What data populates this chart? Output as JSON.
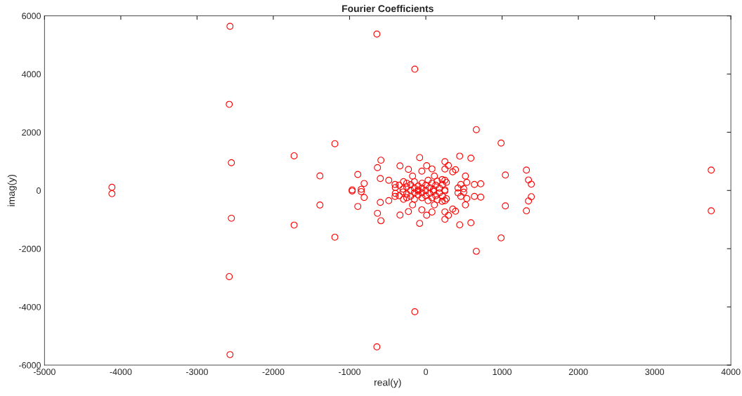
{
  "chart_data": {
    "type": "scatter",
    "title": "Fourier Coefficients",
    "xlabel": "real(y)",
    "ylabel": "imag(y)",
    "xlim": [
      -5000,
      4000
    ],
    "ylim": [
      -6000,
      6000
    ],
    "xticks": [
      -5000,
      -4000,
      -3000,
      -2000,
      -1000,
      0,
      1000,
      2000,
      3000,
      4000
    ],
    "yticks": [
      -6000,
      -4000,
      -2000,
      0,
      2000,
      4000,
      6000
    ],
    "grid": false,
    "marker": "circle",
    "series": [
      {
        "color": "#ff0000",
        "x": [
          -4116,
          -4116,
          -2568,
          -2568,
          -2578,
          -2578,
          -2550,
          -2550,
          -642,
          -642,
          -145,
          -145,
          -1727,
          -1727,
          -1193,
          -1193,
          -1389,
          -1389,
          -966,
          -966,
          -892,
          -892,
          -847,
          -847,
          3742,
          3742,
          662,
          662,
          987,
          987,
          1043,
          1043,
          1319,
          1319,
          1346,
          1346,
          1383,
          1383,
          -81,
          -81,
          444,
          444,
          591,
          591,
          -589,
          -589,
          -634,
          -634,
          -339,
          -339,
          -597,
          -597,
          -809,
          -809,
          -486,
          -486,
          -228,
          -228,
          11,
          11,
          -53,
          -53,
          81,
          81,
          250,
          250,
          296,
          296,
          250,
          250,
          352,
          352,
          389,
          389,
          519,
          519,
          537,
          537,
          637,
          637,
          720,
          720,
          459,
          459,
          422,
          422,
          496,
          496,
          250,
          250,
          214,
          214,
          -404,
          -404,
          -293,
          -293,
          -174,
          -174,
          112,
          112,
          -400,
          -400,
          -350,
          -350,
          -300,
          -300,
          -250,
          -250,
          -250,
          -250,
          -200,
          -200,
          -200,
          -150,
          -150,
          -150,
          -150,
          -100,
          -100,
          -100,
          -100,
          -50,
          -50,
          -50,
          -50,
          0,
          0,
          0,
          30,
          30,
          50,
          50,
          80,
          80,
          100,
          100,
          130,
          130,
          150,
          150,
          180,
          180,
          220,
          220,
          250,
          250,
          270,
          270
        ],
        "values": [
          110,
          -110,
          5640,
          -5640,
          2959,
          -2959,
          954,
          -954,
          5374,
          -5374,
          4167,
          -4167,
          1190,
          -1190,
          1606,
          -1606,
          500,
          -500,
          20,
          -20,
          550,
          -550,
          40,
          -40,
          700,
          -700,
          2089,
          -2089,
          1630,
          -1630,
          530,
          -530,
          700,
          -700,
          360,
          -360,
          215,
          -215,
          1130,
          -1130,
          1180,
          -1180,
          1110,
          -1110,
          1040,
          -1040,
          785,
          -785,
          845,
          -845,
          410,
          -410,
          240,
          -240,
          350,
          -350,
          725,
          -725,
          850,
          -850,
          665,
          -665,
          740,
          -740,
          990,
          -990,
          857,
          -857,
          737,
          -737,
          640,
          -640,
          712,
          -712,
          495,
          -495,
          278,
          -278,
          205,
          -205,
          229,
          -229,
          205,
          -205,
          85,
          -85,
          60,
          -60,
          350,
          -350,
          374,
          -374,
          205,
          -205,
          302,
          -302,
          495,
          -495,
          495,
          -495,
          100,
          -100,
          180,
          -180,
          50,
          -50,
          250,
          -250,
          120,
          -120,
          0,
          200,
          -200,
          80,
          -80,
          300,
          -300,
          150,
          -150,
          20,
          -20,
          250,
          -250,
          80,
          -80,
          0,
          180,
          -180,
          350,
          -350,
          100,
          -100,
          250,
          -250,
          30,
          -30,
          180,
          -180,
          320,
          -320,
          80,
          -80,
          200,
          -200,
          20,
          -20,
          280,
          -280
        ]
      }
    ]
  }
}
